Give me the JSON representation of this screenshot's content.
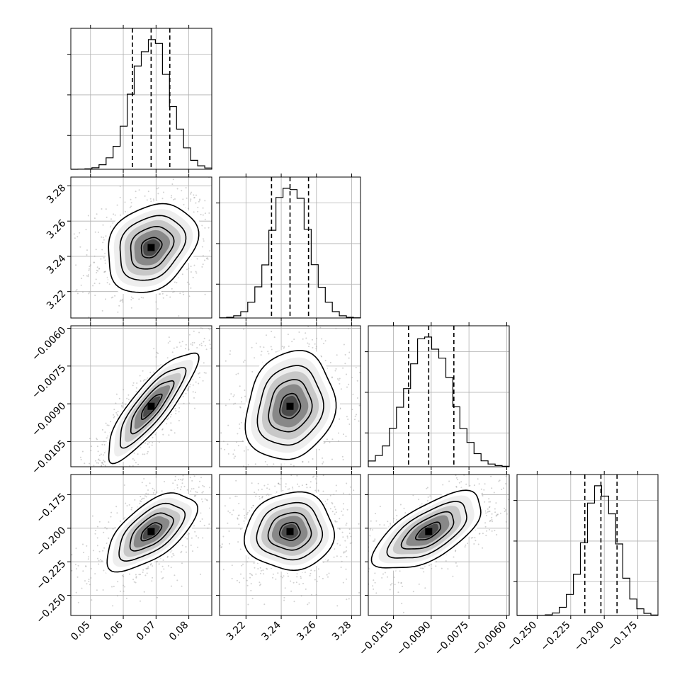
{
  "chart_data": {
    "type": "corner",
    "params": [
      {
        "range": [
          0.044,
          0.087
        ],
        "ticks": [
          0.05,
          0.06,
          0.07,
          0.08
        ],
        "labels": [
          "0.05",
          "0.06",
          "0.07",
          "0.08"
        ],
        "median": 0.0685,
        "q16": 0.0628,
        "q84": 0.0742
      },
      {
        "range": [
          3.205,
          3.285
        ],
        "ticks": [
          3.22,
          3.24,
          3.26,
          3.28
        ],
        "labels": [
          "3.22",
          "3.24",
          "3.26",
          "3.28"
        ],
        "median": 3.245,
        "q16": 3.2345,
        "q84": 3.2555
      },
      {
        "range": [
          -0.0115,
          -0.0059
        ],
        "ticks": [
          -0.0105,
          -0.009,
          -0.0075,
          -0.006
        ],
        "labels": [
          "−0.0105",
          "−0.0090",
          "−0.0075",
          "−0.0060"
        ],
        "median": -0.0091,
        "q16": -0.0099,
        "q84": -0.0081
      },
      {
        "range": [
          -0.265,
          -0.16
        ],
        "ticks": [
          -0.25,
          -0.225,
          -0.2,
          -0.175
        ],
        "labels": [
          "−0.250",
          "−0.225",
          "−0.200",
          "−0.175"
        ],
        "median": -0.2025,
        "q16": -0.2145,
        "q84": -0.1905
      }
    ],
    "xlabel": "",
    "ylabel": "",
    "grid": true
  }
}
